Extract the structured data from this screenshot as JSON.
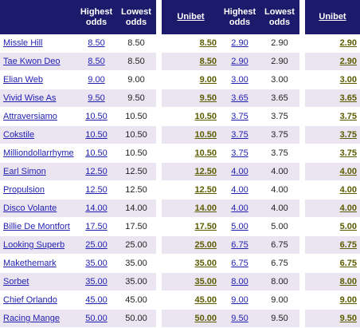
{
  "table": {
    "headers": [
      "Highest odds",
      "Lowest odds",
      "Unibet",
      "Highest odds",
      "Lowest odds",
      "Unibet"
    ],
    "rows": [
      [
        "Missle Hill",
        "8.50",
        "8.50",
        "8.50",
        "2.90",
        "2.90",
        "2.90"
      ],
      [
        "Tae Kwon Deo",
        "8.50",
        "8.50",
        "8.50",
        "2.90",
        "2.90",
        "2.90"
      ],
      [
        "Elian Web",
        "9.00",
        "9.00",
        "9.00",
        "3.00",
        "3.00",
        "3.00"
      ],
      [
        "Vivid Wise As",
        "9.50",
        "9.50",
        "9.50",
        "3.65",
        "3.65",
        "3.65"
      ],
      [
        "Attraversiamo",
        "10.50",
        "10.50",
        "10.50",
        "3.75",
        "3.75",
        "3.75"
      ],
      [
        "Cokstile",
        "10.50",
        "10.50",
        "10.50",
        "3.75",
        "3.75",
        "3.75"
      ],
      [
        "Milliondollarrhyme",
        "10.50",
        "10.50",
        "10.50",
        "3.75",
        "3.75",
        "3.75"
      ],
      [
        "Earl Simon",
        "12.50",
        "12.50",
        "12.50",
        "4.00",
        "4.00",
        "4.00"
      ],
      [
        "Propulsion",
        "12.50",
        "12.50",
        "12.50",
        "4.00",
        "4.00",
        "4.00"
      ],
      [
        "Disco Volante",
        "14.00",
        "14.00",
        "14.00",
        "4.00",
        "4.00",
        "4.00"
      ],
      [
        "Billie De Montfort",
        "17.50",
        "17.50",
        "17.50",
        "5.00",
        "5.00",
        "5.00"
      ],
      [
        "Looking Superb",
        "25.00",
        "25.00",
        "25.00",
        "6.75",
        "6.75",
        "6.75"
      ],
      [
        "Makethemark",
        "35.00",
        "35.00",
        "35.00",
        "6.75",
        "6.75",
        "6.75"
      ],
      [
        "Sorbet",
        "35.00",
        "35.00",
        "35.00",
        "8.00",
        "8.00",
        "8.00"
      ],
      [
        "Chief Orlando",
        "45.00",
        "45.00",
        "45.00",
        "9.00",
        "9.00",
        "9.00"
      ],
      [
        "Racing Mange",
        "50.00",
        "50.00",
        "50.00",
        "9.50",
        "9.50",
        "9.50"
      ]
    ]
  }
}
